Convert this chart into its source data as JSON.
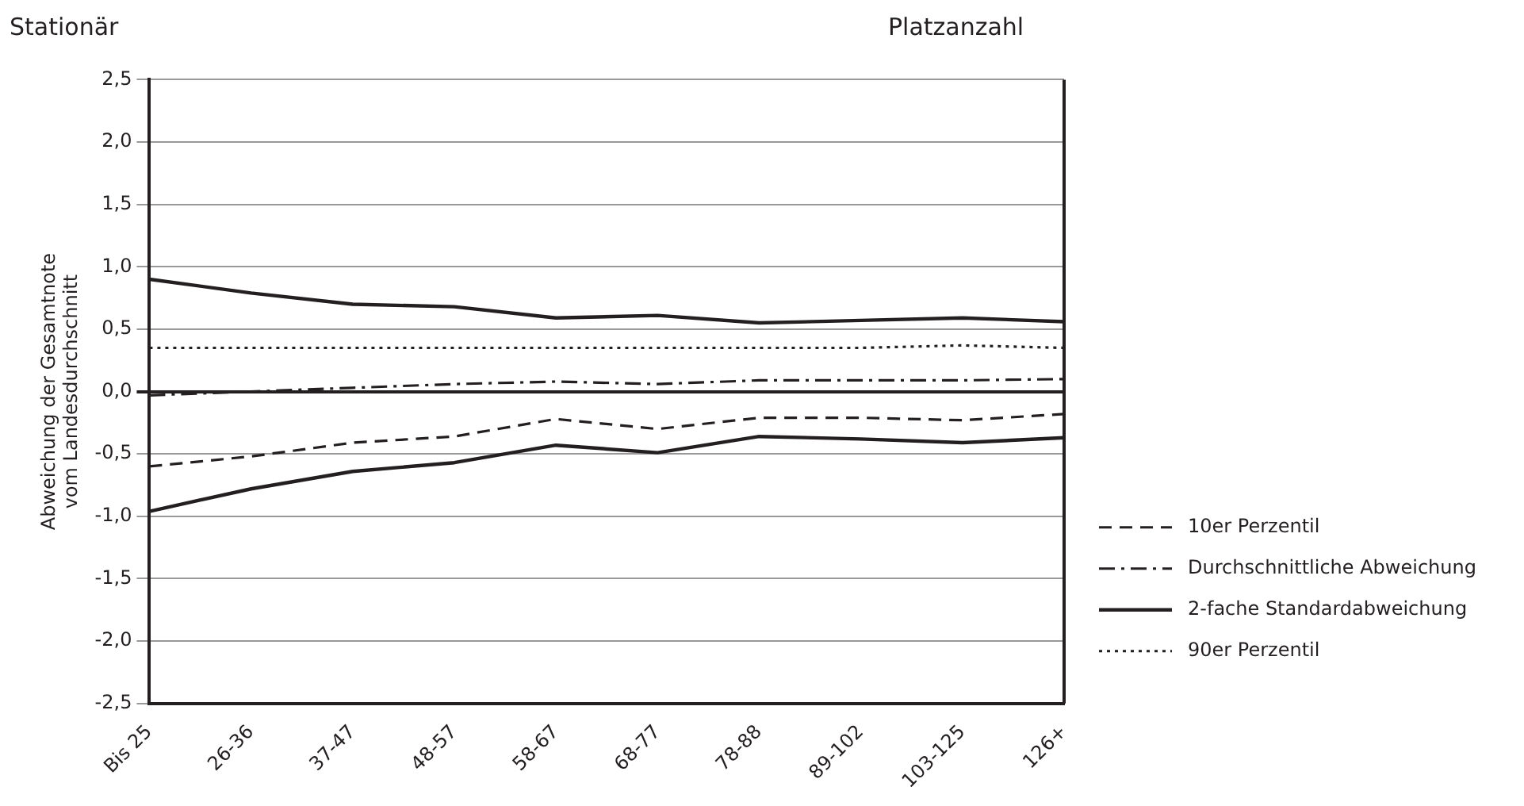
{
  "chart_data": {
    "type": "line",
    "title": "Stationär",
    "subtitle": "Platzanzahl",
    "ylabel": "Abweichung der Gesamtnote\nvom Landesdurchschnitt",
    "categories": [
      "Bis 25",
      "26-36",
      "37-47",
      "48-57",
      "58-67",
      "68-77",
      "78-88",
      "89-102",
      "103-125",
      "126+"
    ],
    "series": [
      {
        "name": "10er Perzentil",
        "color": "#231f20",
        "line_style": "dashed",
        "values": [
          -0.6,
          -0.52,
          -0.41,
          -0.36,
          -0.22,
          -0.3,
          -0.21,
          -0.21,
          -0.23,
          -0.18
        ]
      },
      {
        "name": "Durchschnittliche Abweichung",
        "color": "#231f20",
        "line_style": "dashdot",
        "values": [
          -0.03,
          0.0,
          0.03,
          0.06,
          0.08,
          0.06,
          0.09,
          0.09,
          0.09,
          0.1
        ]
      },
      {
        "name": "2-fache Standardabweichung",
        "color": "#231f20",
        "line_style": "solid",
        "values": [
          0.9,
          0.79,
          0.7,
          0.68,
          0.59,
          0.61,
          0.55,
          0.57,
          0.59,
          0.56
        ]
      },
      {
        "color": "#231f20",
        "line_style": "solid",
        "values": [
          -0.96,
          -0.78,
          -0.64,
          -0.57,
          -0.43,
          -0.49,
          -0.36,
          -0.38,
          -0.41,
          -0.37
        ]
      },
      {
        "name": "90er Perzentil",
        "color": "#231f20",
        "line_style": "dotted",
        "values": [
          0.35,
          0.35,
          0.35,
          0.35,
          0.35,
          0.35,
          0.35,
          0.35,
          0.37,
          0.35
        ]
      }
    ],
    "ylim": [
      -2.5,
      2.5
    ],
    "yticks": [
      {
        "value": -2.5,
        "label": "-2,5"
      },
      {
        "value": -2,
        "label": "-2,0"
      },
      {
        "value": -1.5,
        "label": "-1,5"
      },
      {
        "value": -1,
        "label": "-1,0"
      },
      {
        "value": -0.5,
        "label": "-0,5"
      },
      {
        "value": 0,
        "label": "0,0"
      },
      {
        "value": 0.5,
        "label": "0,5"
      },
      {
        "value": 1,
        "label": "1,0"
      },
      {
        "value": 1.5,
        "label": "1,5"
      },
      {
        "value": 2,
        "label": "2,0"
      },
      {
        "value": 2.5,
        "label": "2,5"
      }
    ],
    "grid": "y",
    "legend": "right",
    "marker": "none"
  }
}
